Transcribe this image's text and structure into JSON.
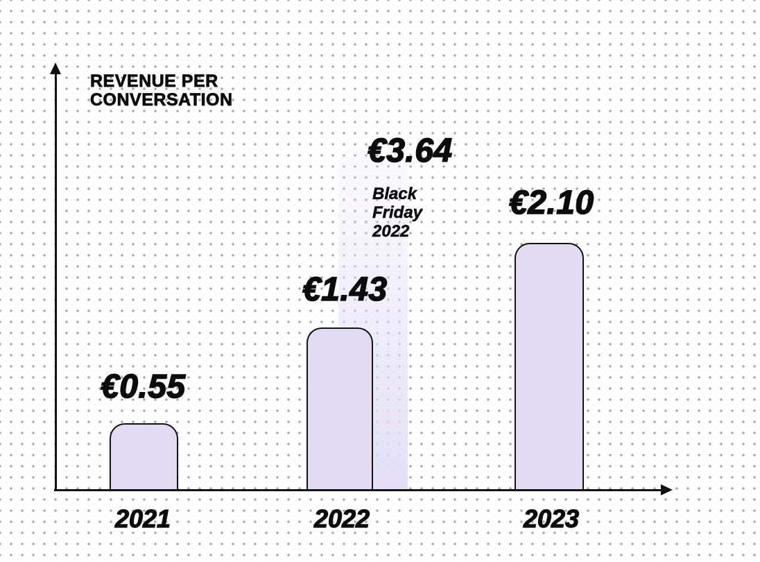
{
  "chart_data": {
    "type": "bar",
    "title": "REVENUE PER CONVERSATION",
    "title_display": "REVENUE PER\nCONVERSATION",
    "categories": [
      "2021",
      "2022",
      "2023"
    ],
    "values": [
      0.55,
      1.43,
      2.1
    ],
    "value_labels": [
      "€0.55",
      "€1.43",
      "€2.10"
    ],
    "currency": "EUR",
    "xlabel": "",
    "ylabel": "",
    "ylim": [
      0,
      4
    ],
    "grid": "dot-pattern",
    "legend": "none",
    "annotation": {
      "value": 3.64,
      "value_label": "€3.64",
      "caption": "Black Friday 2022",
      "caption_display": "Black\nFriday\n2022",
      "attached_to": "2022",
      "style": "faded ghost bar highlight behind 2022 bar"
    },
    "colors": {
      "bar_fill": "#e1dcf2",
      "bar_outline": "#131313",
      "axis": "#111111",
      "text": "#0c0c0c",
      "background": "#ffffff",
      "dot_grid": "#a6a6a6",
      "highlight_band": "#e3def5"
    }
  }
}
